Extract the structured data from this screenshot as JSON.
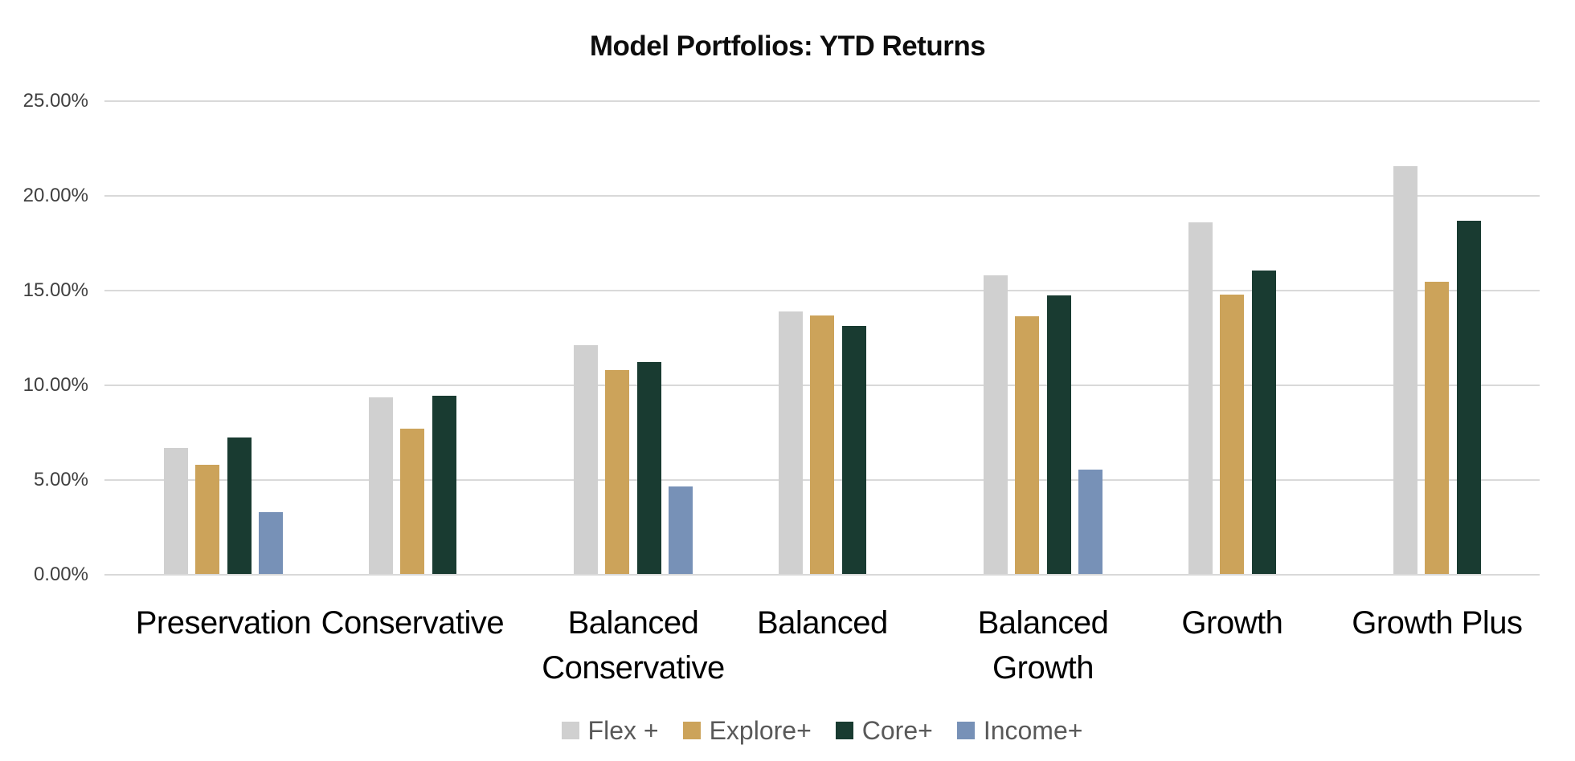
{
  "chart_data": {
    "type": "bar",
    "title": "Model Portfolios: YTD Returns",
    "categories": [
      "Preservation",
      "Conservative",
      "Balanced\nConservative",
      "Balanced",
      "Balanced\nGrowth",
      "Growth",
      "Growth Plus"
    ],
    "series": [
      {
        "name": "Flex +",
        "color": "#D0D0D0",
        "values": [
          6.7,
          9.35,
          12.1,
          13.9,
          15.8,
          18.6,
          21.55
        ]
      },
      {
        "name": "Explore+",
        "color": "#CCA35A",
        "values": [
          5.8,
          7.7,
          10.8,
          13.7,
          13.65,
          14.8,
          15.45
        ]
      },
      {
        "name": "Core+",
        "color": "#193B31",
        "values": [
          7.25,
          9.45,
          11.25,
          13.15,
          14.75,
          16.05,
          18.7
        ]
      },
      {
        "name": "Income+",
        "color": "#7791B7",
        "values": [
          3.3,
          null,
          4.65,
          null,
          5.55,
          null,
          null
        ]
      }
    ],
    "ylabel": "",
    "xlabel": "",
    "ylim": [
      0,
      25
    ],
    "ytick_labels": [
      "0.00%",
      "5.00%",
      "10.00%",
      "15.00%",
      "20.00%",
      "25.00%"
    ],
    "ytick_values": [
      0,
      5,
      10,
      15,
      20,
      25
    ],
    "grid": true,
    "legend_position": "bottom",
    "gridline_color": "#d9d9d9",
    "background_color": "#ffffff"
  }
}
